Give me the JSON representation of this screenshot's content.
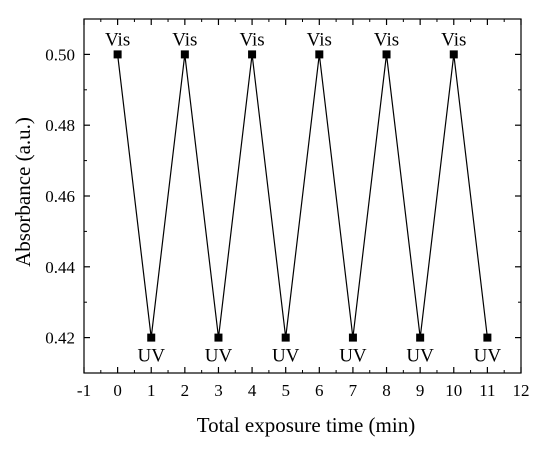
{
  "chart_data": {
    "type": "line",
    "title": "",
    "xlabel": "Total exposure time (min)",
    "ylabel": "Absorbance (a.u.)",
    "xlim": [
      -1,
      12
    ],
    "ylim": [
      0.41,
      0.51
    ],
    "xticks": [
      -1,
      0,
      1,
      2,
      3,
      4,
      5,
      6,
      7,
      8,
      9,
      10,
      11,
      12
    ],
    "yticks": [
      0.42,
      0.44,
      0.46,
      0.48,
      0.5
    ],
    "ytick_labels": [
      "0.42",
      "0.44",
      "0.46",
      "0.48",
      "0.50"
    ],
    "grid": false,
    "legend": "none",
    "series": [
      {
        "x": [
          0,
          1,
          2,
          3,
          4,
          5,
          6,
          7,
          8,
          9,
          10,
          11
        ],
        "y": [
          0.5,
          0.42,
          0.5,
          0.42,
          0.5,
          0.42,
          0.5,
          0.42,
          0.5,
          0.42,
          0.5,
          0.42
        ],
        "labels": [
          "Vis",
          "UV",
          "Vis",
          "UV",
          "Vis",
          "UV",
          "Vis",
          "UV",
          "Vis",
          "UV",
          "Vis",
          "UV"
        ],
        "color": "#000000",
        "marker": "square"
      }
    ]
  }
}
